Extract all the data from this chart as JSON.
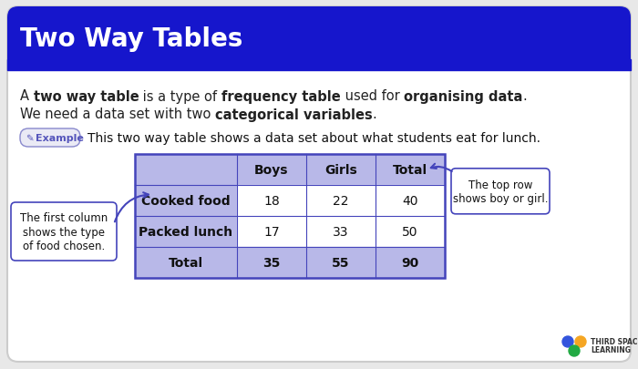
{
  "title": "Two Way Tables",
  "title_bg": "#1616cc",
  "title_color": "#ffffff",
  "body_bg": "#ffffff",
  "card_edge": "#cccccc",
  "outer_bg": "#e8e8e8",
  "description_line1": [
    [
      "A ",
      false
    ],
    [
      "two way table",
      true
    ],
    [
      " is a type of ",
      false
    ],
    [
      "frequency table",
      true
    ],
    [
      " used for ",
      false
    ],
    [
      "organising data",
      true
    ],
    [
      ".",
      false
    ]
  ],
  "description_line2": [
    [
      "We need a data set with two ",
      false
    ],
    [
      "categorical variables",
      true
    ],
    [
      ".",
      false
    ]
  ],
  "example_label": "Example",
  "example_text": "This two way table shows a data set about what students eat for lunch.",
  "example_bg": "#eaeaf5",
  "example_label_color": "#5555bb",
  "example_border": "#8888cc",
  "table_header": [
    "",
    "Boys",
    "Girls",
    "Total"
  ],
  "table_rows": [
    [
      "Cooked food",
      "18",
      "22",
      "40"
    ],
    [
      "Packed lunch",
      "17",
      "33",
      "50"
    ],
    [
      "Total",
      "35",
      "55",
      "90"
    ]
  ],
  "table_header_bg": "#b8b8e8",
  "table_row_bg": "#ffffff",
  "table_col0_bg": "#b8b8e8",
  "table_border_color": "#4444bb",
  "annotation_left_text": "The first column\nshows the type\nof food chosen.",
  "annotation_right_text": "The top row\nshows boy or girl.",
  "annotation_bg": "#ffffff",
  "annotation_border": "#4444bb",
  "arrow_color": "#4444bb",
  "logo_blue": "#3355dd",
  "logo_yellow": "#f5a623",
  "logo_green": "#22aa44",
  "logo_text_color": "#333333",
  "font_size_title": 20,
  "font_size_body": 10.5,
  "font_size_example_label": 8,
  "font_size_example_text": 10,
  "font_size_table_header": 10,
  "font_size_table_data": 10,
  "font_size_annotation": 8.5
}
